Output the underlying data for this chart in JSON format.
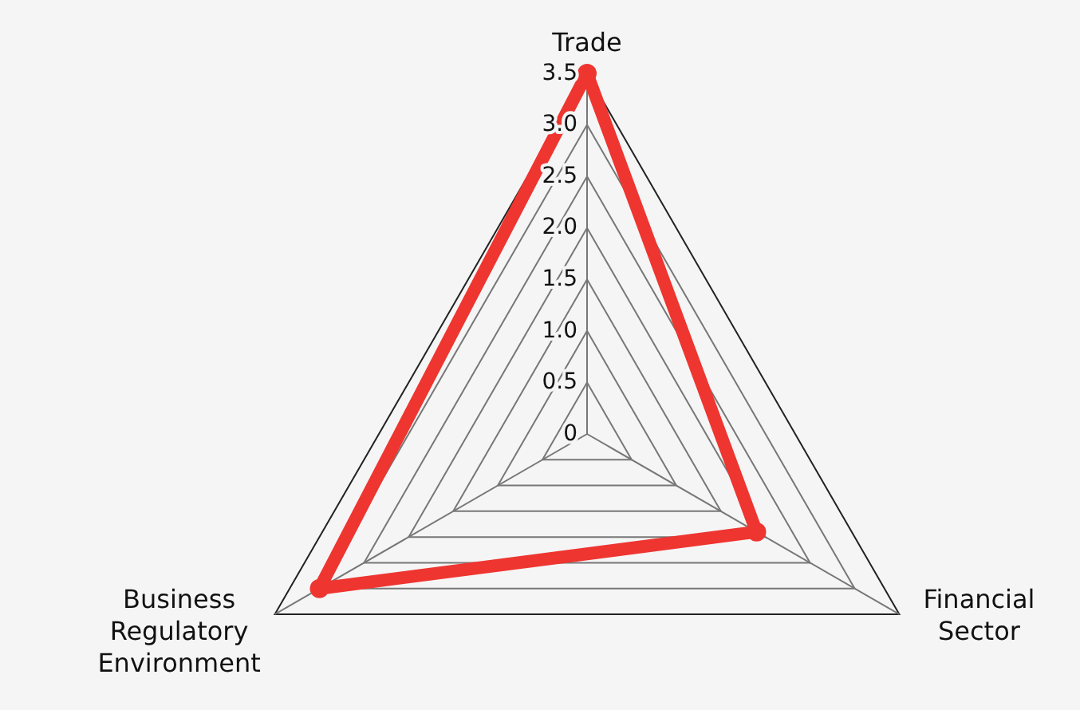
{
  "chart_data": {
    "type": "radar",
    "categories": [
      "Trade",
      "Financial Sector",
      "Business Regulatory Environment"
    ],
    "series": [
      {
        "color": "#ee3530",
        "values": [
          3.5,
          1.9,
          3.0
        ]
      }
    ],
    "ylim": [
      0,
      3.5
    ],
    "yticks": [
      0,
      0.5,
      {
        "value": 1,
        "label": "1.0"
      },
      1.5,
      {
        "value": 2,
        "label": "2.0"
      },
      2.5,
      {
        "value": 3,
        "label": "3.0"
      },
      3.5
    ],
    "grid": true,
    "line_style": "solid",
    "marker": "circle"
  }
}
